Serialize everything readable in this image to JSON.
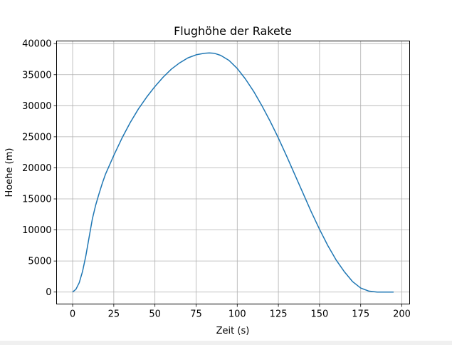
{
  "chart_data": {
    "type": "line",
    "title": "Flughöhe der Rakete",
    "xlabel": "Zeit (s)",
    "ylabel": "Hoehe (m)",
    "xlim": [
      -9.75,
      204.75
    ],
    "ylim": [
      -1925,
      40425
    ],
    "xticks": [
      0,
      25,
      50,
      75,
      100,
      125,
      150,
      175,
      200
    ],
    "yticks": [
      0,
      5000,
      10000,
      15000,
      20000,
      25000,
      30000,
      35000,
      40000
    ],
    "grid": true,
    "series": [
      {
        "color": "#1f77b4",
        "x": [
          0,
          2,
          4,
          6,
          8,
          10,
          12,
          14,
          16,
          18,
          20,
          25,
          30,
          35,
          40,
          45,
          50,
          55,
          60,
          65,
          70,
          75,
          80,
          83,
          86,
          90,
          95,
          100,
          105,
          110,
          115,
          120,
          125,
          130,
          135,
          140,
          145,
          150,
          155,
          160,
          165,
          170,
          175,
          180,
          185,
          190,
          195
        ],
        "y": [
          0,
          450,
          1500,
          3300,
          5800,
          8800,
          11800,
          14000,
          15800,
          17500,
          19000,
          22000,
          24800,
          27300,
          29500,
          31400,
          33100,
          34600,
          35900,
          36900,
          37700,
          38200,
          38450,
          38500,
          38450,
          38100,
          37300,
          36000,
          34300,
          32300,
          30000,
          27500,
          24800,
          21900,
          18900,
          15900,
          12900,
          10100,
          7500,
          5200,
          3300,
          1700,
          650,
          150,
          0,
          0,
          0
        ]
      }
    ]
  }
}
